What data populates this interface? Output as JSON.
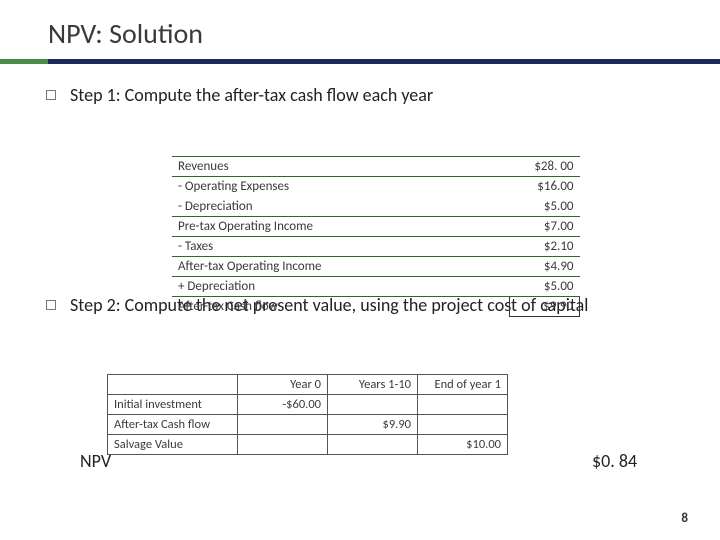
{
  "title": "NPV: Solution",
  "step1": "Step 1: Compute the after-tax cash flow each year",
  "step2": "Step 2: Compute the net present value, using the project cost of capital",
  "cashflow_table": {
    "rows": [
      {
        "label": "Revenues",
        "value": "$28. 00"
      },
      {
        "label": "- Operating Expenses",
        "value": "$16.00"
      },
      {
        "label": "- Depreciation",
        "value": "$5.00"
      },
      {
        "label": "Pre-tax Operating Income",
        "value": "$7.00"
      },
      {
        "label": "- Taxes",
        "value": "$2.10"
      },
      {
        "label": "After-tax Operating Income",
        "value": "$4.90"
      },
      {
        "label": "+ Depreciation",
        "value": "$5.00"
      },
      {
        "label": "After-tax Cash flow",
        "value": "$9.90"
      }
    ],
    "accent_line_color": "#2a6a2a"
  },
  "npv_table": {
    "headers": [
      "",
      "Year 0",
      "Years 1-10",
      "End  of  year 1"
    ],
    "rows": [
      {
        "label": "Initial investment",
        "y0": "-$60.00",
        "y1_10": "",
        "end": ""
      },
      {
        "label": "After-tax Cash flow",
        "y0": "",
        "y1_10": "$9.90",
        "end": ""
      },
      {
        "label": "Salvage Value",
        "y0": "",
        "y1_10": "",
        "end": "$10.00"
      }
    ]
  },
  "npv_label": "NPV",
  "npv_value": "$0. 84",
  "page_number": "8",
  "style": {
    "title_fontsize": 28,
    "body_fontsize": 18,
    "table_fontsize": 13,
    "accent_color": "#4a8a4a",
    "bar_color": "#1a2a5a",
    "text_color": "#3a3a3a",
    "background_color": "#ffffff"
  }
}
